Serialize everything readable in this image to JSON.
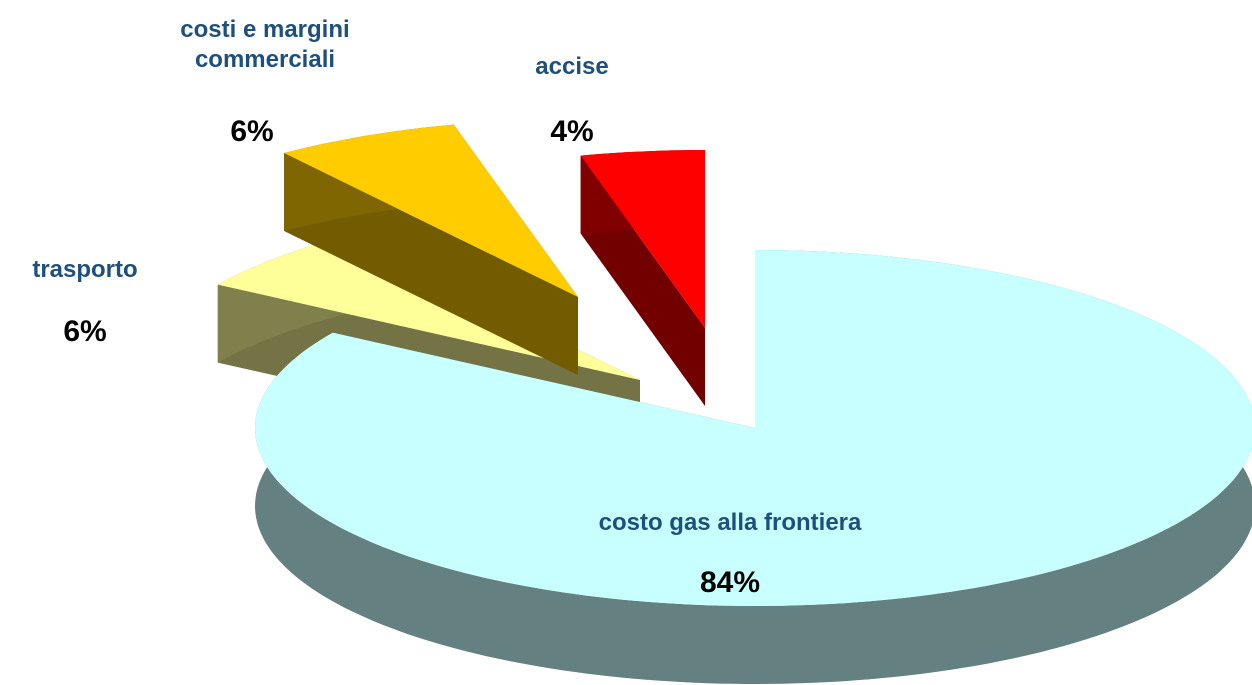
{
  "chart_data": {
    "type": "pie",
    "categories": [
      "costo gas alla frontiera",
      "trasporto",
      "costi e margini commerciali",
      "accise"
    ],
    "values": [
      84,
      6,
      6,
      4
    ],
    "value_labels": [
      "84%",
      "6%",
      "6%",
      "4%"
    ],
    "colors": [
      "#c8ffff",
      "#ffff99",
      "#ffcc00",
      "#ff0000"
    ]
  }
}
